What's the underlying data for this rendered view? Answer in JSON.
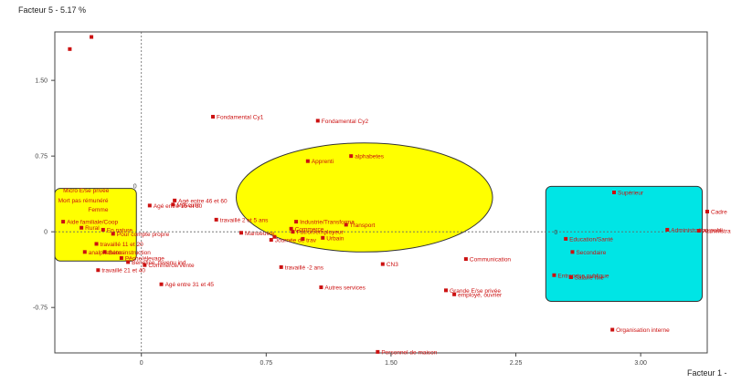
{
  "chart_data": {
    "type": "scatter",
    "ylabel": "Facteur 5  -  5.17 %",
    "xlabel": "Facteur 1  -",
    "xlim": [
      -0.52,
      3.4
    ],
    "ylim": [
      -1.2,
      1.98
    ],
    "xticks": [
      {
        "value": 0,
        "label": "0"
      },
      {
        "value": 0.75,
        "label": "0.75"
      },
      {
        "value": 1.5,
        "label": "1.50"
      },
      {
        "value": 2.25,
        "label": "2.25"
      },
      {
        "value": 3.0,
        "label": "3.00"
      }
    ],
    "yticks": [
      {
        "value": 1.5,
        "label": "1.50"
      },
      {
        "value": 0.75,
        "label": "0.75"
      },
      {
        "value": 0,
        "label": "0"
      },
      {
        "value": -0.75,
        "label": "-0.75"
      }
    ],
    "zero_markers": {
      "y_axis_zero_label": "0",
      "x_axis_zero_label": "0"
    },
    "colors": {
      "point": "#cc1111",
      "yellow": "#ffff00",
      "cyan": "#00e5e5",
      "frame": "#444444",
      "zero_line": "#666666"
    },
    "highlights": [
      {
        "shape": "rect",
        "color": "yellow",
        "x0": -0.52,
        "x1": -0.03,
        "y0": -0.29,
        "y1": 0.43
      },
      {
        "shape": "ellipse",
        "color": "yellow",
        "cx": 1.34,
        "cy": 0.34,
        "rx": 0.77,
        "ry": 0.54
      },
      {
        "shape": "rect",
        "color": "cyan",
        "x0": 2.43,
        "x1": 3.37,
        "y0": -0.69,
        "y1": 0.45
      }
    ],
    "points": [
      {
        "x": -0.43,
        "y": 1.81,
        "label": ""
      },
      {
        "x": -0.3,
        "y": 1.93,
        "label": ""
      },
      {
        "x": 0.43,
        "y": 1.14,
        "label": "Fondamental Cy1"
      },
      {
        "x": 1.06,
        "y": 1.1,
        "label": "Fondamental Cy2"
      },
      {
        "x": 1.26,
        "y": 0.75,
        "label": "alphabetes"
      },
      {
        "x": 1.0,
        "y": 0.7,
        "label": "Apprenti"
      },
      {
        "x": 0.2,
        "y": 0.31,
        "label": "Agé entre 46 et 60"
      },
      {
        "x": 0.19,
        "y": 0.27,
        "label": "Masculin"
      },
      {
        "x": 0.05,
        "y": 0.26,
        "label": "Agé entre 15 et 30"
      },
      {
        "x": 0.45,
        "y": 0.12,
        "label": "travaillé 2 et 5 ans"
      },
      {
        "x": 0.93,
        "y": 0.1,
        "label": "Industrie/Transforma"
      },
      {
        "x": 0.9,
        "y": 0.03,
        "label": "Commerce"
      },
      {
        "x": 1.23,
        "y": 0.07,
        "label": "Transport"
      },
      {
        "x": 0.91,
        "y": 0.0,
        "label": "Patron/employeur"
      },
      {
        "x": 0.6,
        "y": -0.01,
        "label": "Manoeuvre"
      },
      {
        "x": 0.8,
        "y": -0.05,
        "label": ""
      },
      {
        "x": 0.97,
        "y": -0.07,
        "label": ""
      },
      {
        "x": 1.09,
        "y": -0.06,
        "label": "Urbain"
      },
      {
        "x": 0.78,
        "y": -0.08,
        "label": "Journée de trav"
      },
      {
        "x": -0.47,
        "y": 0.1,
        "label": "Aide familiale/Coop"
      },
      {
        "x": -0.36,
        "y": 0.04,
        "label": "Rural"
      },
      {
        "x": -0.23,
        "y": 0.02,
        "label": "En nature"
      },
      {
        "x": -0.17,
        "y": -0.02,
        "label": "Pour compte propre"
      },
      {
        "x": -0.27,
        "y": -0.12,
        "label": "travaillé 11 et 20"
      },
      {
        "x": -0.22,
        "y": -0.2,
        "label": "Sans instruction"
      },
      {
        "x": -0.34,
        "y": -0.2,
        "label": "analphabètes"
      },
      {
        "x": -0.12,
        "y": -0.26,
        "label": "Pêche/élevage"
      },
      {
        "x": -0.08,
        "y": -0.3,
        "label": "Bénéfice, revenu ind"
      },
      {
        "x": -0.26,
        "y": -0.38,
        "label": "travaillé 21 et 40"
      },
      {
        "x": 0.02,
        "y": -0.33,
        "label": "Commerce/Vente"
      },
      {
        "x": 0.84,
        "y": -0.35,
        "label": "travaillé -2 ans"
      },
      {
        "x": 1.45,
        "y": -0.32,
        "label": "CN3"
      },
      {
        "x": 1.95,
        "y": -0.27,
        "label": "Communication"
      },
      {
        "x": 0.12,
        "y": -0.52,
        "label": "Agé entre 31 et 45"
      },
      {
        "x": 1.08,
        "y": -0.55,
        "label": "Autres services"
      },
      {
        "x": 1.83,
        "y": -0.58,
        "label": "Grande E/se privée"
      },
      {
        "x": 1.88,
        "y": -0.62,
        "label": "employé, ouvrier"
      },
      {
        "x": 2.48,
        "y": -0.43,
        "label": "Entreprise publique"
      },
      {
        "x": 2.58,
        "y": -0.45,
        "label": "Salarié fixe"
      },
      {
        "x": 2.59,
        "y": -0.2,
        "label": "Secondaire"
      },
      {
        "x": 2.55,
        "y": -0.07,
        "label": "Education/Santé"
      },
      {
        "x": 2.84,
        "y": 0.39,
        "label": "Supérieur"
      },
      {
        "x": 3.16,
        "y": 0.02,
        "label": "Administration publi"
      },
      {
        "x": 3.35,
        "y": 0.01,
        "label": "Administration"
      },
      {
        "x": 3.4,
        "y": 0.2,
        "label": "Cadre"
      },
      {
        "x": 2.83,
        "y": -0.97,
        "label": "Organisation interne"
      },
      {
        "x": 1.42,
        "y": -1.19,
        "label": "Personnel de maison"
      }
    ],
    "point_notes": "Several small labels visible in the left cluster also read: Micro E/se privée, Mort pas rémunéré, Femme; kept as annotations.",
    "annotations": [
      "Micro E/se privée",
      "Mort pas rémunéré",
      "Femme"
    ]
  }
}
